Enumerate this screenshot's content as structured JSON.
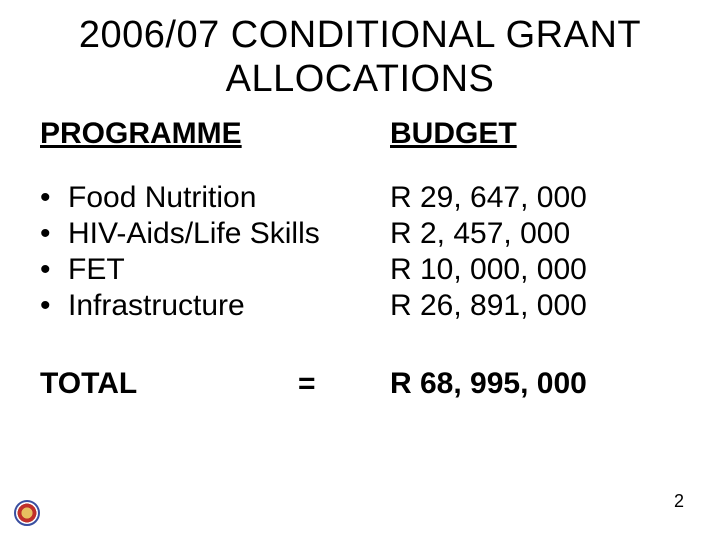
{
  "title_line1": "2006/07 CONDITIONAL GRANT",
  "title_line2": "ALLOCATIONS",
  "headers": {
    "programme": "PROGRAMME",
    "budget": "BUDGET"
  },
  "items": [
    {
      "label": "Food Nutrition",
      "value": "R 29, 647, 000"
    },
    {
      "label": "HIV-Aids/Life Skills",
      "value": "R   2, 457, 000"
    },
    {
      "label": "FET",
      "value": "R 10, 000, 000"
    },
    {
      "label": "Infrastructure",
      "value": "R 26, 891, 000"
    }
  ],
  "total": {
    "label": "TOTAL",
    "equals": "=",
    "value": "R 68, 995, 000"
  },
  "page_number": "2",
  "colors": {
    "background": "#ffffff",
    "text": "#000000"
  },
  "fonts": {
    "title_size_pt": 38,
    "body_size_pt": 30,
    "pagenum_size_pt": 18,
    "family": "Arial"
  }
}
